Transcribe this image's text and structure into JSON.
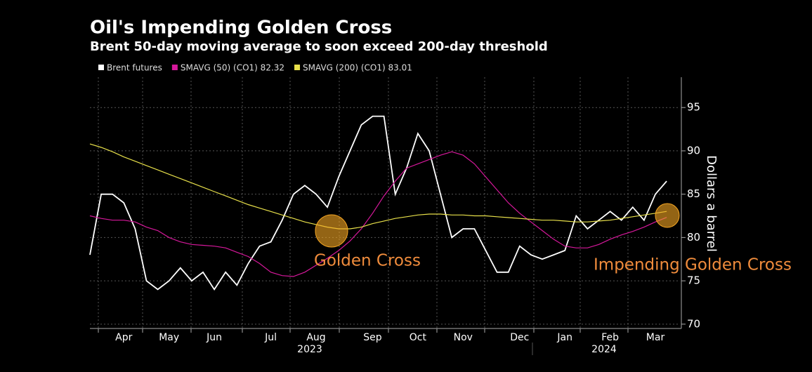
{
  "chart_data": {
    "type": "line",
    "title": "Oil's Impending Golden Cross",
    "subtitle": "Brent 50-day moving average to soon exceed 200-day threshold",
    "y_axis_label": "Dollars a barrel",
    "x_group_labels": [
      "2023",
      "2024"
    ],
    "annotations": [
      "Golden Cross",
      "Impending Golden Cross"
    ],
    "categories": [
      null,
      null,
      null,
      "Apr",
      null,
      null,
      null,
      "May",
      null,
      null,
      null,
      "Jun",
      null,
      null,
      null,
      null,
      "Jul",
      null,
      null,
      null,
      "Aug",
      null,
      null,
      null,
      null,
      "Sep",
      null,
      null,
      null,
      "Oct",
      null,
      null,
      null,
      "Nov",
      null,
      null,
      null,
      null,
      "Dec",
      null,
      null,
      null,
      "Jan",
      null,
      null,
      null,
      "Feb",
      null,
      null,
      null,
      "Mar",
      null
    ],
    "series": [
      {
        "name": "Brent futures",
        "color": "#ffffff",
        "values": [
          78,
          85,
          85,
          84,
          81,
          75,
          74,
          75,
          76.5,
          75,
          76,
          74,
          76,
          74.5,
          77,
          79,
          79.5,
          82,
          85,
          86,
          85,
          83.5,
          87,
          90,
          93,
          94,
          94,
          85,
          88,
          92,
          90,
          85,
          80,
          81,
          81,
          78.5,
          76,
          76,
          79,
          78,
          77.5,
          78,
          78.5,
          82.5,
          81,
          82,
          83,
          82,
          83.5,
          82,
          85,
          86.5
        ]
      },
      {
        "name": "SMAVG (50) (CO1) 82.32",
        "color": "#d6189b",
        "values": [
          82.5,
          82.2,
          82,
          82,
          81.8,
          81.2,
          80.8,
          80,
          79.5,
          79.2,
          79.1,
          79,
          78.8,
          78.3,
          77.8,
          77,
          76,
          75.6,
          75.5,
          76,
          76.8,
          77.6,
          78.5,
          79.6,
          81,
          82.8,
          84.8,
          86.5,
          88,
          88.5,
          89,
          89.5,
          89.9,
          89.5,
          88.5,
          87,
          85.5,
          84,
          82.8,
          81.8,
          80.8,
          79.8,
          79,
          78.8,
          78.8,
          79.2,
          79.8,
          80.3,
          80.7,
          81.2,
          81.8,
          82.32
        ]
      },
      {
        "name": "SMAVG (200) (CO1) 83.01",
        "color": "#e8e04a",
        "values": [
          90.8,
          90.4,
          89.9,
          89.3,
          88.8,
          88.3,
          87.8,
          87.3,
          86.8,
          86.3,
          85.8,
          85.3,
          84.8,
          84.3,
          83.8,
          83.4,
          83.0,
          82.6,
          82.2,
          81.8,
          81.5,
          81.2,
          81.0,
          81.0,
          81.2,
          81.6,
          81.9,
          82.2,
          82.4,
          82.6,
          82.7,
          82.7,
          82.6,
          82.6,
          82.5,
          82.5,
          82.4,
          82.3,
          82.2,
          82.1,
          82.0,
          82.0,
          81.9,
          81.8,
          81.8,
          81.9,
          82.0,
          82.2,
          82.4,
          82.6,
          82.8,
          83.01
        ]
      }
    ],
    "ylim": [
      69.5,
      98.5
    ],
    "yticks": [
      70,
      75,
      80,
      85,
      90,
      95
    ],
    "grid": true
  }
}
